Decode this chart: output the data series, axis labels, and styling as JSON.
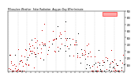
{
  "title": "Milwaukee Weather  Solar Radiation",
  "subtitle": "Avg per Day W/m²/minute",
  "bg_color": "#ffffff",
  "plot_bg": "#ffffff",
  "grid_color": "#aaaaaa",
  "ylim": [
    0,
    900
  ],
  "yticks": [
    100,
    200,
    300,
    400,
    500,
    600,
    700,
    800,
    900
  ],
  "highlight_box_color": "#ff0000",
  "highlight_box_bg": "#ffaaaa",
  "dot_color_red": "#cc0000",
  "dot_color_black": "#000000",
  "num_points": 365,
  "seed": 42,
  "month_starts": [
    0,
    31,
    59,
    90,
    120,
    151,
    181,
    212,
    243,
    273,
    304,
    334
  ]
}
